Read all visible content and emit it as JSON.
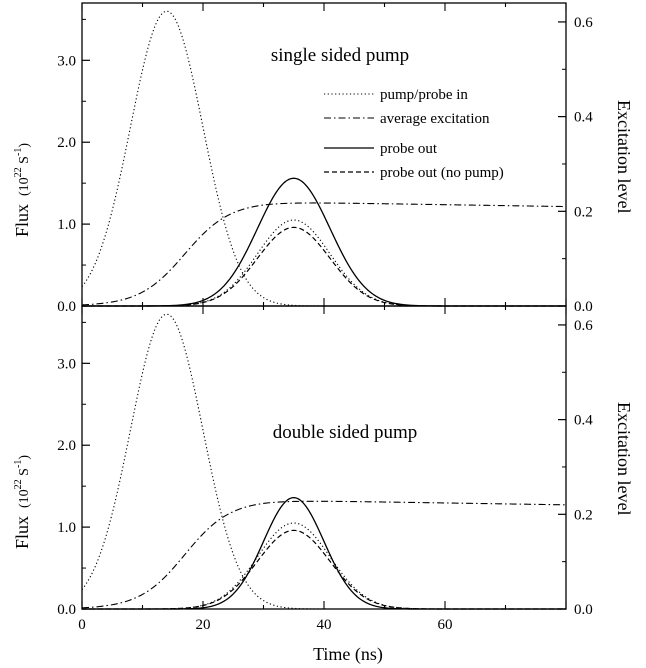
{
  "chart_data": [
    {
      "type": "line",
      "panel": "top",
      "title": "single sided pump",
      "xlim": [
        0,
        80
      ],
      "ylim_left": [
        0,
        3.7
      ],
      "ylim_right": [
        0,
        0.64
      ],
      "left_ticks": [
        "0.0",
        "1.0",
        "2.0",
        "3.0"
      ],
      "right_ticks": [
        "0.0",
        "0.2",
        "0.4",
        "0.6"
      ],
      "ylabel_left": "Flux",
      "ylabel_left_unit": "(10",
      "ylabel_left_exp": "22",
      "ylabel_left_unit2": " S",
      "ylabel_left_exp2": "-1",
      "ylabel_left_close": ")",
      "ylabel_right": "Excitation level",
      "legend_position": "top-right",
      "grid": false,
      "series": [
        {
          "name": "pump/probe in",
          "axis": "left",
          "style": "dotted",
          "peak_x": 14,
          "peak_y": 3.6,
          "width": 6.0
        },
        {
          "name": "average excitation",
          "axis": "right",
          "style": "dash-dot",
          "saturation": 0.22,
          "tail_end": 0.21,
          "rise_mid": 17,
          "rise_width": 6
        },
        {
          "name": "probe out",
          "axis": "left",
          "style": "solid",
          "peak_x": 35,
          "peak_y": 1.56,
          "width": 6.0
        },
        {
          "name": "probe out (no pump)",
          "axis": "left",
          "style": "dashed",
          "peak_x": 35,
          "peak_y": 0.96,
          "width": 6.0
        }
      ],
      "extra_series": [
        {
          "axis": "left",
          "style": "dotted",
          "peak_x": 35,
          "peak_y": 1.05,
          "width": 6.0
        }
      ]
    },
    {
      "type": "line",
      "panel": "bottom",
      "title": "double sided pump",
      "xlim": [
        0,
        80
      ],
      "ylim_left": [
        0,
        3.7
      ],
      "ylim_right": [
        0,
        0.64
      ],
      "left_ticks": [
        "0.0",
        "1.0",
        "2.0",
        "3.0"
      ],
      "right_ticks": [
        "0.0",
        "0.2",
        "0.4",
        "0.6"
      ],
      "x_ticks": [
        "0",
        "20",
        "40",
        "60"
      ],
      "xlabel": "Time (ns)",
      "ylabel_left": "Flux",
      "ylabel_left_unit": "(10",
      "ylabel_left_exp": "22",
      "ylabel_left_unit2": " S",
      "ylabel_left_exp2": "-1",
      "ylabel_left_close": ")",
      "ylabel_right": "Excitation level",
      "grid": false,
      "series": [
        {
          "name": "pump/probe in",
          "axis": "left",
          "style": "dotted",
          "peak_x": 14,
          "peak_y": 3.6,
          "width": 6.0
        },
        {
          "name": "average excitation",
          "axis": "right",
          "style": "dash-dot",
          "saturation": 0.23,
          "tail_end": 0.22,
          "rise_mid": 17,
          "rise_width": 6
        },
        {
          "name": "probe out",
          "axis": "left",
          "style": "solid",
          "peak_x": 35,
          "peak_y": 1.36,
          "width": 5.0
        },
        {
          "name": "probe out (no pump)",
          "axis": "left",
          "style": "dashed",
          "peak_x": 35,
          "peak_y": 0.96,
          "width": 6.0
        }
      ],
      "extra_series": [
        {
          "axis": "left",
          "style": "dotted",
          "peak_x": 35,
          "peak_y": 1.05,
          "width": 6.0
        }
      ]
    }
  ]
}
